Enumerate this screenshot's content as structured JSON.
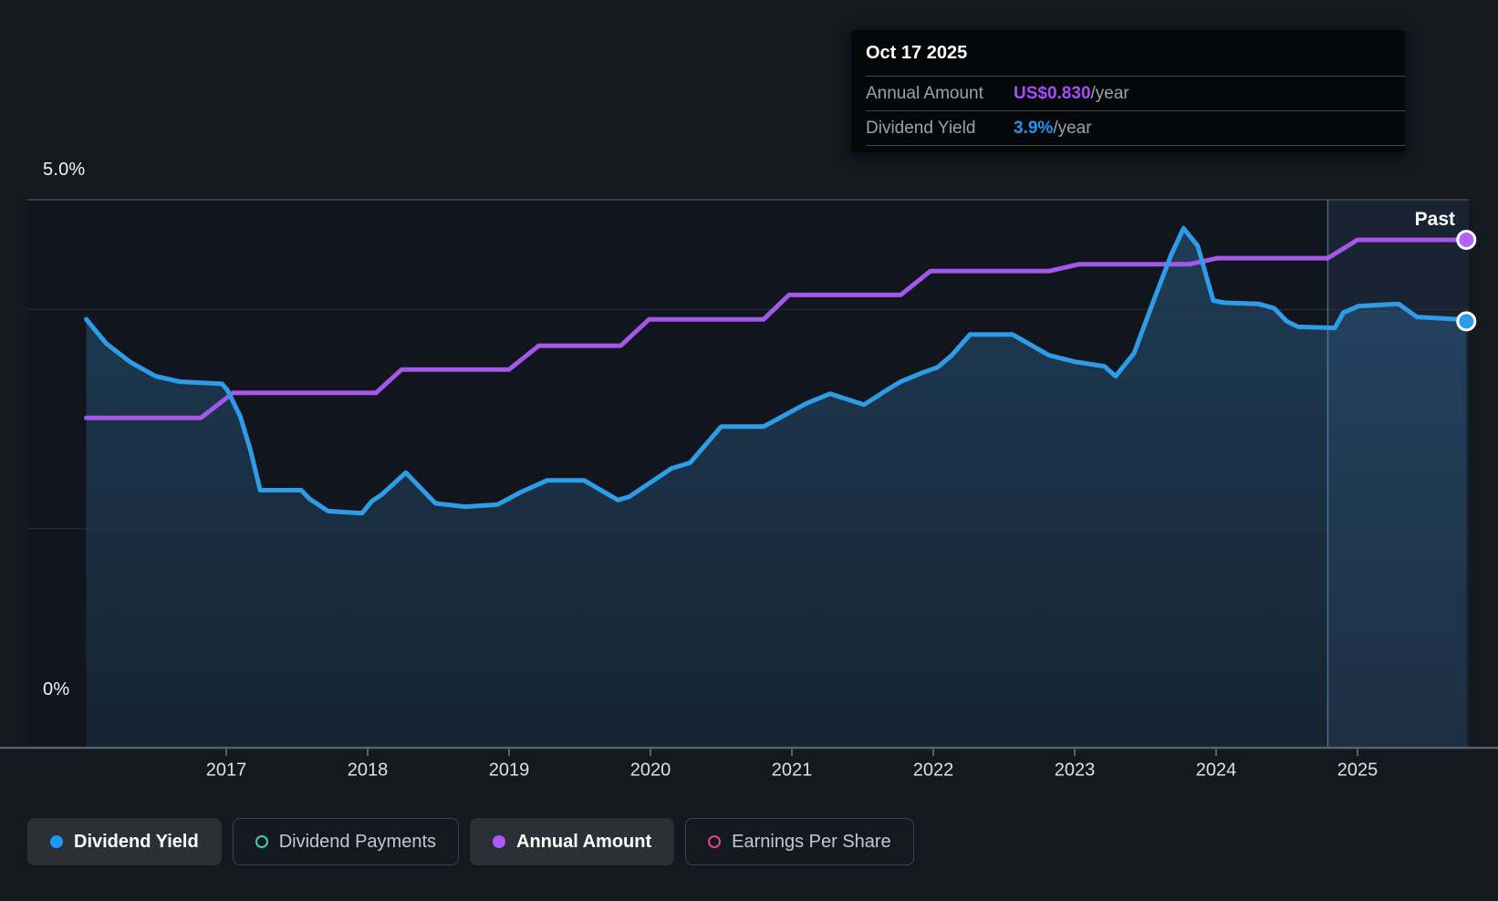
{
  "tooltip": {
    "date": "Oct 17 2025",
    "rows": [
      {
        "label": "Annual Amount",
        "value": "US$0.830",
        "suffix": "/year",
        "value_color": "#a64dff"
      },
      {
        "label": "Dividend Yield",
        "value": "3.9%",
        "suffix": "/year",
        "value_color": "#2196f3"
      }
    ]
  },
  "axis": {
    "y_top_label": "5.0%",
    "y_bottom_label": "0%"
  },
  "past_label": "Past",
  "legend": [
    {
      "label": "Dividend Yield",
      "color": "#2196f3",
      "style": "filled",
      "active": true
    },
    {
      "label": "Dividend Payments",
      "color": "#3ecfb4",
      "style": "hollow",
      "active": false
    },
    {
      "label": "Annual Amount",
      "color": "#ab5cf7",
      "style": "filled",
      "active": true
    },
    {
      "label": "Earnings Per Share",
      "color": "#e0468e",
      "style": "hollow",
      "active": false
    }
  ],
  "colors": {
    "page_bg": "#14181f",
    "plot_bg": "#11161e",
    "grid_faint": "#2c3138",
    "grid_top": "#41464d",
    "axis_line": "#596069",
    "tick_label": "#dde1e6",
    "past_divider": "rgba(120,165,220,0.55)",
    "past_overlay": "rgba(96,156,222,0.10)",
    "area_top": "rgba(62,148,215,0.30)",
    "area_bottom": "rgba(62,148,215,0.10)",
    "yield_line": "#2f9ce8",
    "amount_line": "#a557ea",
    "yield_dot": "#2d9ce8",
    "amount_dot": "#b264f7",
    "dot_ring": "#ffffff"
  },
  "chart_data": {
    "type": "line",
    "title": "",
    "xlabel": "",
    "ylabel": "Dividend Yield (%)",
    "ylim_pct": [
      0,
      5
    ],
    "y_gridlines_pct": [
      2,
      4,
      5
    ],
    "x_ticks": [
      2017,
      2018,
      2019,
      2020,
      2021,
      2022,
      2023,
      2024,
      2025
    ],
    "x_range": [
      2016.01,
      2025.79
    ],
    "past_region_start_x": 2024.79,
    "grid": true,
    "legend_position": "bottom",
    "series": [
      {
        "name": "Dividend Yield",
        "unit": "%",
        "axis_max": 5.0,
        "area": true,
        "end_dot": true,
        "points": [
          [
            2016.01,
            3.91
          ],
          [
            2016.15,
            3.69
          ],
          [
            2016.32,
            3.52
          ],
          [
            2016.5,
            3.39
          ],
          [
            2016.67,
            3.34
          ],
          [
            2016.97,
            3.32
          ],
          [
            2017.01,
            3.26
          ],
          [
            2017.1,
            3.02
          ],
          [
            2017.17,
            2.72
          ],
          [
            2017.24,
            2.35
          ],
          [
            2017.53,
            2.35
          ],
          [
            2017.59,
            2.27
          ],
          [
            2017.72,
            2.16
          ],
          [
            2017.96,
            2.14
          ],
          [
            2018.03,
            2.25
          ],
          [
            2018.1,
            2.31
          ],
          [
            2018.27,
            2.51
          ],
          [
            2018.48,
            2.23
          ],
          [
            2018.69,
            2.2
          ],
          [
            2018.92,
            2.22
          ],
          [
            2019.08,
            2.33
          ],
          [
            2019.27,
            2.44
          ],
          [
            2019.53,
            2.44
          ],
          [
            2019.77,
            2.26
          ],
          [
            2019.85,
            2.29
          ],
          [
            2020.15,
            2.55
          ],
          [
            2020.28,
            2.6
          ],
          [
            2020.5,
            2.93
          ],
          [
            2020.8,
            2.93
          ],
          [
            2020.97,
            3.05
          ],
          [
            2021.1,
            3.14
          ],
          [
            2021.27,
            3.23
          ],
          [
            2021.51,
            3.13
          ],
          [
            2021.68,
            3.27
          ],
          [
            2021.77,
            3.34
          ],
          [
            2021.94,
            3.43
          ],
          [
            2022.03,
            3.47
          ],
          [
            2022.13,
            3.58
          ],
          [
            2022.26,
            3.77
          ],
          [
            2022.56,
            3.77
          ],
          [
            2022.82,
            3.58
          ],
          [
            2023.01,
            3.52
          ],
          [
            2023.21,
            3.48
          ],
          [
            2023.29,
            3.39
          ],
          [
            2023.42,
            3.6
          ],
          [
            2023.55,
            4.05
          ],
          [
            2023.68,
            4.49
          ],
          [
            2023.77,
            4.74
          ],
          [
            2023.87,
            4.58
          ],
          [
            2023.98,
            4.08
          ],
          [
            2024.06,
            4.06
          ],
          [
            2024.3,
            4.05
          ],
          [
            2024.41,
            4.01
          ],
          [
            2024.5,
            3.89
          ],
          [
            2024.58,
            3.84
          ],
          [
            2024.84,
            3.83
          ],
          [
            2024.9,
            3.97
          ],
          [
            2025.01,
            4.03
          ],
          [
            2025.29,
            4.05
          ],
          [
            2025.42,
            3.93
          ],
          [
            2025.7,
            3.91
          ],
          [
            2025.77,
            3.89
          ]
        ]
      },
      {
        "name": "Annual Amount",
        "unit": "US$/year",
        "axis_max": 0.8955,
        "area": false,
        "end_dot": true,
        "points": [
          [
            2016.01,
            0.539
          ],
          [
            2016.82,
            0.539
          ],
          [
            2017.05,
            0.58
          ],
          [
            2018.06,
            0.58
          ],
          [
            2018.24,
            0.618
          ],
          [
            2019.0,
            0.618
          ],
          [
            2019.21,
            0.657
          ],
          [
            2019.79,
            0.657
          ],
          [
            2019.99,
            0.7
          ],
          [
            2020.8,
            0.7
          ],
          [
            2020.98,
            0.74
          ],
          [
            2021.77,
            0.74
          ],
          [
            2021.98,
            0.779
          ],
          [
            2022.82,
            0.779
          ],
          [
            2023.03,
            0.79
          ],
          [
            2023.81,
            0.79
          ],
          [
            2024.01,
            0.8
          ],
          [
            2024.79,
            0.8
          ],
          [
            2025.0,
            0.83
          ],
          [
            2025.77,
            0.83
          ]
        ]
      }
    ]
  }
}
